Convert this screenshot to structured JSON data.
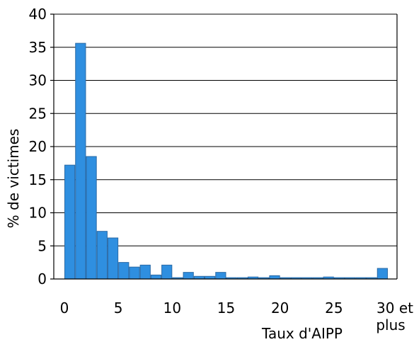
{
  "chart_data": {
    "type": "bar",
    "xlabel": "Taux d'AIPP",
    "ylabel": "% de victimes",
    "ylim": [
      0,
      40
    ],
    "yticks": [
      0,
      5,
      10,
      15,
      20,
      25,
      30,
      35,
      40
    ],
    "xlim": [
      0,
      31
    ],
    "xticks": [
      {
        "value": 0,
        "label": "0"
      },
      {
        "value": 5,
        "label": "5"
      },
      {
        "value": 10,
        "label": "10"
      },
      {
        "value": 15,
        "label": "15"
      },
      {
        "value": 20,
        "label": "20"
      },
      {
        "value": 25,
        "label": "25"
      },
      {
        "value": 30,
        "label": "30 et plus"
      }
    ],
    "grid": "horizontal",
    "bar_color": "#2f8fe0",
    "bar_edge_color": "#2a6aa6",
    "categories": [
      "1",
      "2",
      "3",
      "4",
      "5",
      "6",
      "7",
      "8",
      "9",
      "10",
      "11",
      "12",
      "13",
      "14",
      "15",
      "16",
      "17",
      "18",
      "19",
      "20",
      "21",
      "22",
      "23",
      "24",
      "25",
      "26",
      "27",
      "28",
      "29",
      "30 et plus"
    ],
    "values": [
      17.2,
      35.6,
      18.5,
      7.2,
      6.2,
      2.5,
      1.8,
      2.1,
      0.6,
      2.1,
      0.2,
      1.0,
      0.4,
      0.4,
      1.0,
      0.2,
      0.2,
      0.3,
      0.2,
      0.5,
      0.2,
      0.2,
      0.2,
      0.2,
      0.3,
      0.2,
      0.2,
      0.2,
      0.2,
      1.6
    ]
  }
}
